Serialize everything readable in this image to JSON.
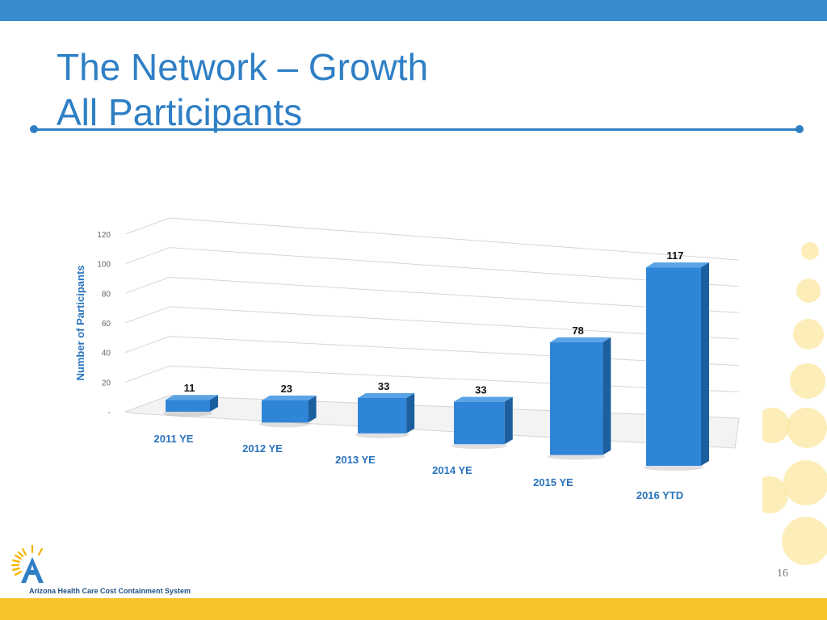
{
  "slide": {
    "title_line1": "The Network – Growth",
    "title_line2": "All Participants",
    "page_number": "16",
    "logo_text": "Arizona Health Care Cost Containment System"
  },
  "colors": {
    "accent": "#2f7fc5",
    "top_bar": "#3a8dcd",
    "bottom_bar": "#f7c42a",
    "bar_front": "#2f85d8",
    "bar_side": "#1c5f9f",
    "bar_top": "#5aa3e6",
    "label_text": "#2a73bd"
  },
  "chart_data": {
    "type": "bar",
    "title": "",
    "xlabel": "",
    "ylabel": "Number of Participants",
    "categories": [
      "2011 YE",
      "2012 YE",
      "2013 YE",
      "2014 YE",
      "2015 YE",
      "2016 YTD"
    ],
    "values": [
      11,
      23,
      33,
      33,
      78,
      117
    ],
    "ylim": [
      0,
      120
    ],
    "y_ticks": [
      "-",
      "20",
      "40",
      "60",
      "80",
      "100",
      "120"
    ],
    "grid": true,
    "legend": "none"
  }
}
